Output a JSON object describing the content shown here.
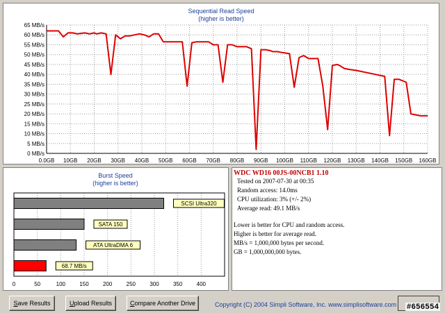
{
  "sequential_chart": {
    "title": "Sequential Read Speed",
    "subtitle": "(higher is better)",
    "line_color": "#dd0000"
  },
  "burst_chart": {
    "title": "Burst Speed",
    "subtitle": "(higher is better)"
  },
  "chart_data": [
    {
      "type": "line",
      "title": "Sequential Read Speed",
      "subtitle": "(higher is better)",
      "xlabel": "",
      "ylabel": "",
      "x_unit": "GB",
      "y_unit": "MB/s",
      "xlim": [
        0,
        160
      ],
      "ylim": [
        0,
        65
      ],
      "x_ticks": [
        "0.0GB",
        "10GB",
        "20GB",
        "30GB",
        "40GB",
        "50GB",
        "60GB",
        "70GB",
        "80GB",
        "90GB",
        "100GB",
        "110GB",
        "120GB",
        "130GB",
        "140GB",
        "150GB",
        "160GB"
      ],
      "y_ticks": [
        "0 MB/s",
        "5 MB/s",
        "10 MB/s",
        "15 MB/s",
        "20 MB/s",
        "25 MB/s",
        "30 MB/s",
        "35 MB/s",
        "40 MB/s",
        "45 MB/s",
        "50 MB/s",
        "55 MB/s",
        "60 MB/s",
        "65 MB/s"
      ],
      "grid": true,
      "x": [
        0,
        5,
        7,
        9,
        11,
        13,
        16,
        18,
        20,
        21,
        23,
        25,
        27,
        29,
        31,
        33,
        35,
        37,
        39,
        41,
        43,
        45,
        47,
        49,
        51,
        53,
        55,
        57,
        59,
        61,
        63,
        65,
        66,
        68,
        70,
        72,
        74,
        76,
        78,
        80,
        82,
        84,
        86,
        88,
        90,
        92,
        94,
        95,
        97,
        99,
        102,
        104,
        106,
        108,
        110,
        112,
        114,
        116,
        118,
        120,
        122,
        123,
        125,
        127,
        130,
        132,
        134,
        136,
        138,
        140,
        142,
        144,
        146,
        148,
        151,
        153,
        155,
        157,
        160
      ],
      "series": [
        {
          "values": [
            62,
            62,
            59,
            61,
            61,
            60.5,
            61,
            60.5,
            61,
            60.5,
            61,
            60.5,
            40,
            60,
            58,
            59.5,
            59.5,
            60,
            60.5,
            60,
            59,
            60.5,
            60.5,
            56.5,
            56.5,
            56.5,
            56.5,
            56.5,
            34,
            56,
            56.5,
            56.5,
            56.5,
            56.5,
            55,
            55,
            36,
            55,
            55,
            54,
            54,
            54,
            53,
            2,
            52.5,
            52.5,
            52,
            51.5,
            51.5,
            51,
            50.5,
            33.5,
            48.5,
            49.5,
            48,
            48,
            48,
            34,
            12,
            44.5,
            45,
            44.5,
            43,
            42.5,
            42,
            41.5,
            41,
            40.5,
            40,
            39.5,
            39,
            9,
            37.5,
            37.5,
            36,
            20,
            19.5,
            19,
            19
          ]
        }
      ]
    },
    {
      "type": "bar",
      "orientation": "horizontal",
      "title": "Burst Speed",
      "subtitle": "(higher is better)",
      "xlim": [
        0,
        450
      ],
      "x_ticks": [
        "0",
        "50",
        "100",
        "150",
        "200",
        "250",
        "300",
        "350",
        "400"
      ],
      "categories": [
        "SCSI Ultra320",
        "SATA 150",
        "ATA UltraDMA 6",
        "68.7 MB/s"
      ],
      "values": [
        320,
        150,
        133,
        68.7
      ],
      "colors": [
        "#808080",
        "#808080",
        "#808080",
        "#ff0000"
      ],
      "label_bg": "#ffffc0"
    }
  ],
  "info": {
    "title": "WDC  WD16 00JS-00NCB1 1.10",
    "lines": [
      "Tested on 2007-07-30 at 00:35",
      "Random access: 14.0ms",
      "CPU utilization: 3% (+/- 2%)",
      "Average read: 49.1 MB/s"
    ],
    "notes": [
      "Lower is better for CPU and random access.",
      "Higher is better for average read.",
      "MB/s = 1,000,000 bytes per second.",
      "GB = 1,000,000,000 bytes."
    ]
  },
  "buttons": {
    "save": {
      "underline": "S",
      "rest": "ave Results"
    },
    "upload": {
      "underline": "U",
      "rest": "pload Results"
    },
    "compare": {
      "underline": "C",
      "rest": "ompare Another Drive"
    }
  },
  "copyright": "Copyright (C) 2004 Simpli Software, Inc.  www.simplisoftware.com",
  "watermark": "#656554"
}
